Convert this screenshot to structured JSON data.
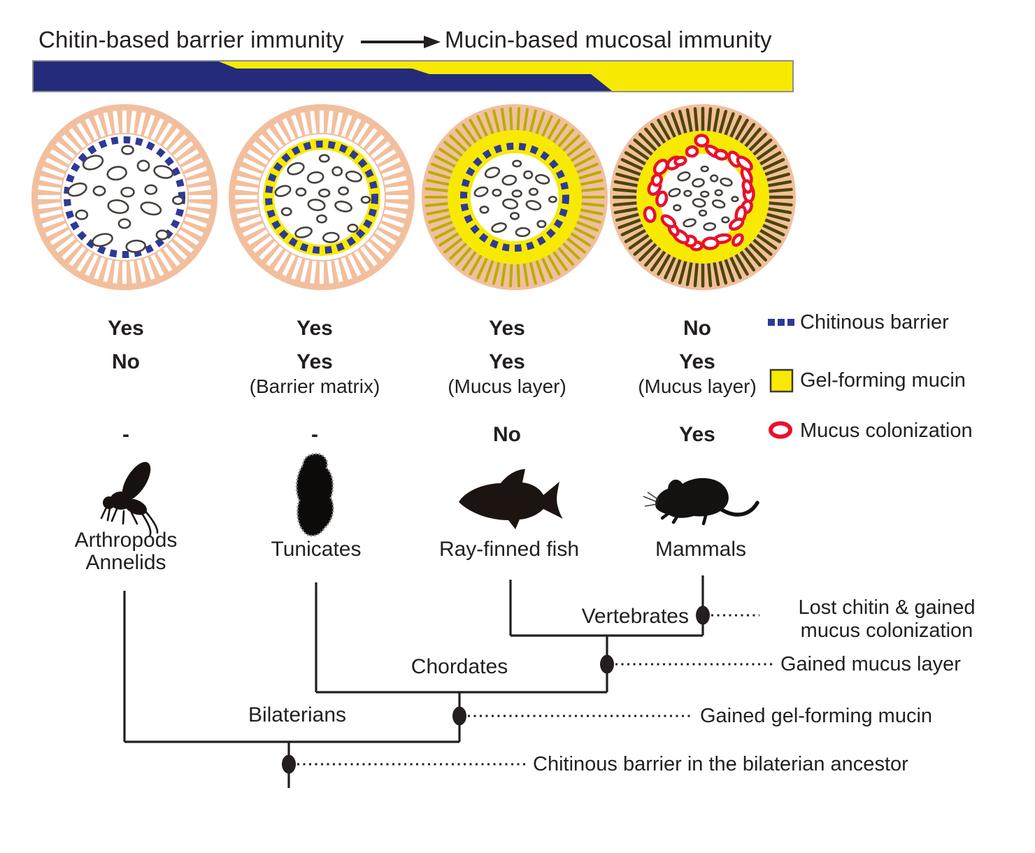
{
  "header": {
    "title_left": "Chitin-based barrier immunity",
    "title_right": "Mucin-based mucosal immunity"
  },
  "colors": {
    "bar_navy": "#232b7a",
    "mucin_yellow": "#f7ea00",
    "chitin_blue": "#2e3a96",
    "colonization_red": "#e8112d",
    "epithelium_peach": "#f2bf9e",
    "villi_line_olive": "#b7ae00",
    "villi_line_dark": "#4c4600",
    "bacteria_outline": "#47413d",
    "text": "#231f20"
  },
  "columns": [
    {
      "label": "Arthropods",
      "label2": "Annelids",
      "chitinous_barrier": "Yes",
      "gel_forming_mucin": "No",
      "gel_note": "",
      "mucus_colonization": "-",
      "icon": "fly-silhouette"
    },
    {
      "label": "Tunicates",
      "label2": "",
      "chitinous_barrier": "Yes",
      "gel_forming_mucin": "Yes",
      "gel_note": "(Barrier matrix)",
      "mucus_colonization": "-",
      "icon": "tunicate-silhouette"
    },
    {
      "label": "Ray-finned fish",
      "label2": "",
      "chitinous_barrier": "Yes",
      "gel_forming_mucin": "Yes",
      "gel_note": "(Mucus layer)",
      "mucus_colonization": "No",
      "icon": "fish-silhouette"
    },
    {
      "label": "Mammals",
      "label2": "",
      "chitinous_barrier": "No",
      "gel_forming_mucin": "Yes",
      "gel_note": "(Mucus layer)",
      "mucus_colonization": "Yes",
      "icon": "mouse-silhouette"
    }
  ],
  "legend": {
    "items": [
      {
        "label": "Chitinous barrier",
        "swatch": "blue-dashed-squares",
        "color": "#2e3a96"
      },
      {
        "label": "Gel-forming mucin",
        "swatch": "yellow-square",
        "color": "#f7ea00"
      },
      {
        "label": "Mucus colonization",
        "swatch": "red-oval-outline",
        "color": "#e8112d"
      }
    ]
  },
  "tree": {
    "clade_labels": [
      "Vertebrates",
      "Chordates",
      "Bilaterians"
    ],
    "events": [
      {
        "line1": "Lost chitin & gained",
        "line2": "mucus colonization"
      },
      {
        "label": "Gained mucus layer"
      },
      {
        "label": "Gained gel-forming mucin"
      },
      {
        "label": "Chitinous barrier in the bilaterian ancestor"
      }
    ]
  }
}
